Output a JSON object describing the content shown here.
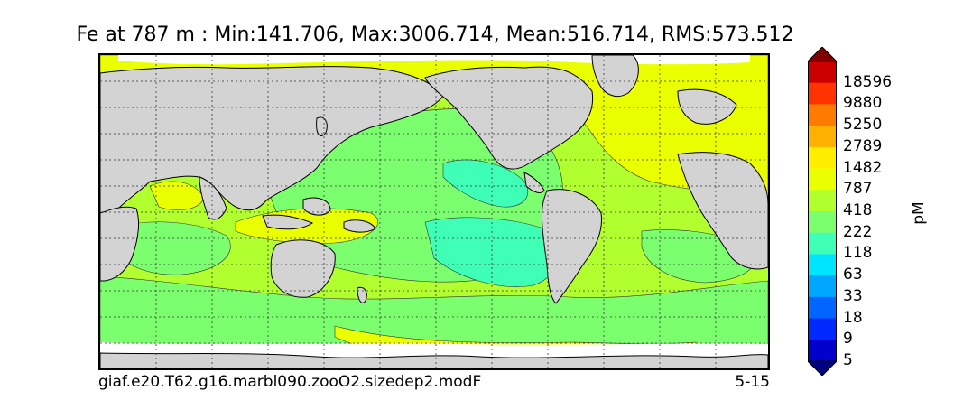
{
  "title": "Fe at 787 m : Min:141.706, Max:3006.714, Mean:516.714, RMS:573.512",
  "footer": {
    "case_name": "giaf.e20.T62.g16.marbl090.zooO2.sizedep2.modF",
    "years": "5-15"
  },
  "colorbar": {
    "unit": "pM",
    "levels": [
      "18596",
      "9880",
      "5250",
      "2789",
      "1482",
      "787",
      "418",
      "222",
      "118",
      "63",
      "33",
      "18",
      "9",
      "5"
    ],
    "colors_top_to_bottom": [
      "#7f0000",
      "#cc0000",
      "#ff3300",
      "#ff7a00",
      "#ffb000",
      "#ffee00",
      "#eaff00",
      "#b2ff30",
      "#7cff6f",
      "#3effb5",
      "#00e5ff",
      "#00a6ff",
      "#0066ff",
      "#0028ff",
      "#0000cc",
      "#00007f"
    ]
  },
  "map": {
    "land_color": "#d3d3d3",
    "grid": "dotted",
    "colors": {
      "level_418_787": "#eaff00",
      "level_222_418": "#b2ff30",
      "level_118_222": "#7cff6f",
      "level_63_118": "#3effb5",
      "no_data": "#ffffff"
    }
  }
}
